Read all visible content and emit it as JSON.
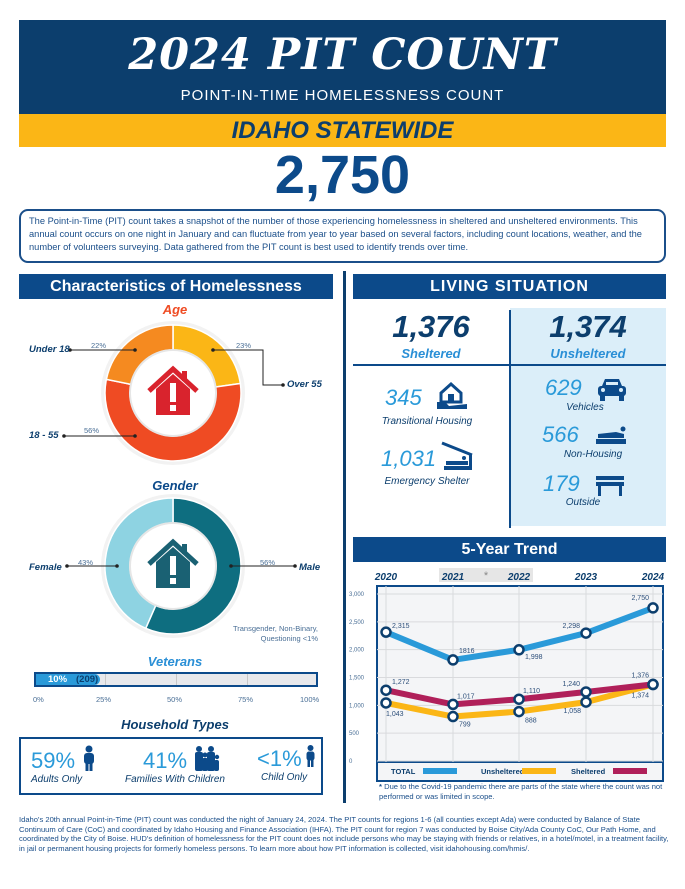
{
  "header": {
    "title": "2024 PIT COUNT",
    "subtitle": "POINT-IN-TIME HOMELESSNESS COUNT",
    "region": "IDAHO STATEWIDE",
    "total": "2,750",
    "intro": "The Point-in-Time (PIT) count takes a snapshot of the number of those experiencing homelessness in sheltered and unsheltered environments. This annual count occurs on one night in January and can fluctuate from year to year based on several factors, including count locations, weather, and the number of volunteers surveying. Data gathered from the PIT count is best used to identify trends over time."
  },
  "characteristics": {
    "title": "Characteristics of Homelessness",
    "age": {
      "title": "Age",
      "segments": [
        {
          "label": "Over 55",
          "percent": 23,
          "display": "23%",
          "color": "#fbb616"
        },
        {
          "label": "18 - 55",
          "percent": 56,
          "display": "56%",
          "color": "#ef4b23"
        },
        {
          "label": "Under 18",
          "percent": 22,
          "display": "22%",
          "color": "#f58a20"
        }
      ],
      "icon": "house-alert-icon",
      "icon_color": "#d9232d"
    },
    "gender": {
      "title": "Gender",
      "segments": [
        {
          "label": "Male",
          "percent": 56,
          "display": "56%",
          "color": "#0e6e80"
        },
        {
          "label": "Female",
          "percent": 43,
          "display": "43%",
          "color": "#8ed3e2"
        }
      ],
      "note_line1": "Transgender, Non-Binary,",
      "note_line2": "Questioning <1%",
      "icon": "house-alert-icon",
      "icon_color": "#1a6173"
    },
    "veterans": {
      "title": "Veterans",
      "percent": 10,
      "label": "10%",
      "count": "(209)",
      "ticks": [
        "0%",
        "25%",
        "50%",
        "75%",
        "100%"
      ]
    },
    "household": {
      "title": "Household Types",
      "items": [
        {
          "pct": "59%",
          "label": "Adults Only",
          "icon": "adult-icon"
        },
        {
          "pct": "41%",
          "label": "Families With Children",
          "icon": "family-icon"
        },
        {
          "pct": "<1%",
          "label": "Child Only",
          "icon": "child-icon"
        }
      ]
    }
  },
  "living": {
    "title": "LIVING SITUATION",
    "sheltered": {
      "total": "1,376",
      "label": "Sheltered",
      "items": [
        {
          "value": "345",
          "label": "Transitional Housing",
          "icon": "house-hand-icon"
        },
        {
          "value": "1,031",
          "label": "Emergency Shelter",
          "icon": "shelter-bed-icon"
        }
      ]
    },
    "unsheltered": {
      "total": "1,374",
      "label": "Unsheltered",
      "items": [
        {
          "value": "629",
          "label": "Vehicles",
          "icon": "car-icon"
        },
        {
          "value": "566",
          "label": "Non-Housing",
          "icon": "sleeping-icon"
        },
        {
          "value": "179",
          "label": "Outside",
          "icon": "bench-icon"
        }
      ]
    }
  },
  "trend": {
    "title": "5-Year Trend",
    "covid_marker": "*",
    "covid_note": "Due to the Covid-19 pandemic there are parts of the state where the count was not performed or was limited in scope."
  },
  "chart_data": {
    "type": "line",
    "title": "5-Year Trend",
    "x": [
      "2020",
      "2021",
      "2022",
      "2023",
      "2024"
    ],
    "ylim": [
      0,
      3000
    ],
    "yticks": [
      "0",
      "500",
      "1,000",
      "1,500",
      "2,000",
      "2,500",
      "3,000"
    ],
    "ytick_values": [
      0,
      500,
      1000,
      1500,
      2000,
      2500,
      3000
    ],
    "grid": true,
    "legend_position": "bottom",
    "series": [
      {
        "name": "TOTAL",
        "color": "#2a9ad9",
        "values": [
          2315,
          1816,
          1998,
          2298,
          2750
        ],
        "labels": [
          "2,315",
          "1816",
          "1,998",
          "2,298",
          "2,750"
        ]
      },
      {
        "name": "Unsheltered",
        "color": "#fbb616",
        "values": [
          1043,
          799,
          888,
          1058,
          1374
        ],
        "labels": [
          "1,043",
          "799",
          "888",
          "1,058",
          "1,374"
        ]
      },
      {
        "name": "Sheltered",
        "color": "#b0205a",
        "values": [
          1272,
          1017,
          1110,
          1240,
          1376
        ],
        "labels": [
          "1,272",
          "1,017",
          "1,110",
          "1,240",
          "1,376"
        ]
      }
    ]
  },
  "footnote": "Idaho's 20th annual Point-in-Time (PIT) count was conducted the night of January 24, 2024. The PIT counts for regions 1-6 (all counties except Ada) were conducted by Balance of State Continuum of Care (CoC) and coordinated by Idaho Housing and Finance Association (IHFA). The PIT count for region 7 was conducted by Boise City/Ada County CoC, Our Path Home, and coordinated by the City of Boise. HUD's definition of homelessness for the PIT count does not include persons who may be staying with friends or relatives, in a hotel/motel, in a treatment facility, in jail or permanent housing projects for formerly homeless persons. To learn more about how PIT information is collected, visit idahohousing.com/hmis/."
}
